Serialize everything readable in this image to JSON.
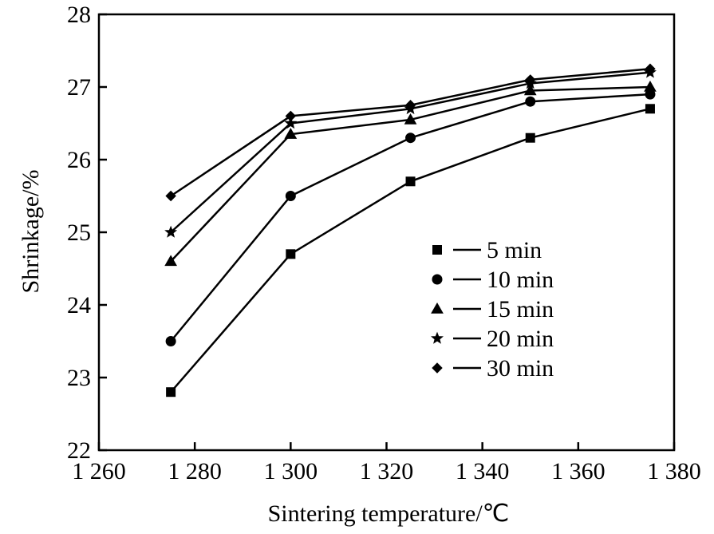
{
  "chart_data": {
    "type": "line",
    "title": "",
    "xlabel": "Sintering temperature/℃",
    "ylabel": "Shrinkage/%",
    "xlim": [
      1260,
      1380
    ],
    "ylim": [
      22,
      28
    ],
    "x_ticks": [
      1260,
      1280,
      1300,
      1320,
      1340,
      1360,
      1380
    ],
    "x_tick_labels": [
      "1 260",
      "1 280",
      "1 300",
      "1 320",
      "1 340",
      "1 360",
      "1 380"
    ],
    "y_ticks": [
      22,
      23,
      24,
      25,
      26,
      27,
      28
    ],
    "y_tick_labels": [
      "22",
      "23",
      "24",
      "25",
      "26",
      "27",
      "28"
    ],
    "grid": false,
    "legend_position": "lower-right",
    "x": [
      1275,
      1300,
      1325,
      1350,
      1375
    ],
    "series": [
      {
        "name": "5 min",
        "marker": "square",
        "values": [
          22.8,
          24.7,
          25.7,
          26.3,
          26.7
        ]
      },
      {
        "name": "10 min",
        "marker": "circle",
        "values": [
          23.5,
          25.5,
          26.3,
          26.8,
          26.9
        ]
      },
      {
        "name": "15 min",
        "marker": "triangle",
        "values": [
          24.6,
          26.35,
          26.55,
          26.95,
          27.0
        ]
      },
      {
        "name": "20 min",
        "marker": "star",
        "values": [
          25.0,
          26.5,
          26.7,
          27.05,
          27.2
        ]
      },
      {
        "name": "30 min",
        "marker": "diamond",
        "values": [
          25.5,
          26.6,
          26.75,
          27.1,
          27.25
        ]
      }
    ],
    "legend_dash": "—",
    "line_color": "#000000"
  }
}
